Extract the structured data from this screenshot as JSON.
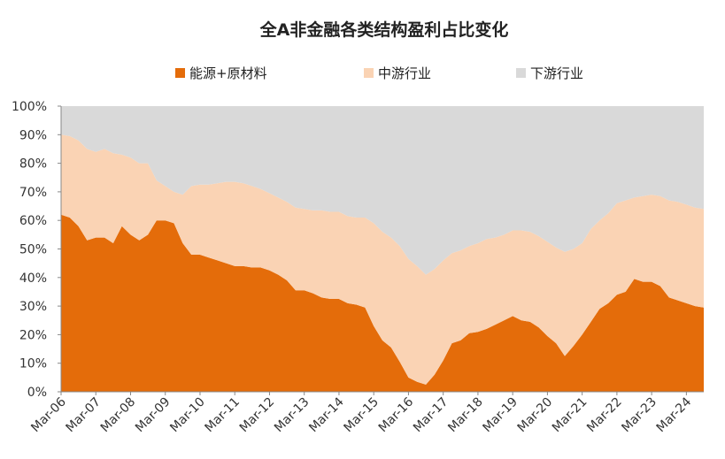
{
  "chart_data": {
    "type": "area",
    "stacked": true,
    "title": "全A非金融各类结构盈利占比变化",
    "legend_position": "top",
    "ylim": [
      0,
      100
    ],
    "yticks": [
      "0%",
      "10%",
      "20%",
      "30%",
      "40%",
      "50%",
      "60%",
      "70%",
      "80%",
      "90%",
      "100%"
    ],
    "xticks": [
      "Mar-06",
      "Mar-07",
      "Mar-08",
      "Mar-09",
      "Mar-10",
      "Mar-11",
      "Mar-12",
      "Mar-13",
      "Mar-14",
      "Mar-15",
      "Mar-16",
      "Mar-17",
      "Mar-18",
      "Mar-19",
      "Mar-20",
      "Mar-21",
      "Mar-22",
      "Mar-23",
      "Mar-24"
    ],
    "x": [
      2006.0,
      2006.25,
      2006.5,
      2006.75,
      2007.0,
      2007.25,
      2007.5,
      2007.75,
      2008.0,
      2008.25,
      2008.5,
      2008.75,
      2009.0,
      2009.25,
      2009.5,
      2009.75,
      2010.0,
      2010.25,
      2010.5,
      2010.75,
      2011.0,
      2011.25,
      2011.5,
      2011.75,
      2012.0,
      2012.25,
      2012.5,
      2012.75,
      2013.0,
      2013.25,
      2013.5,
      2013.75,
      2014.0,
      2014.25,
      2014.5,
      2014.75,
      2015.0,
      2015.25,
      2015.5,
      2015.75,
      2016.0,
      2016.25,
      2016.5,
      2016.75,
      2017.0,
      2017.25,
      2017.5,
      2017.75,
      2018.0,
      2018.25,
      2018.5,
      2018.75,
      2019.0,
      2019.25,
      2019.5,
      2019.75,
      2020.0,
      2020.25,
      2020.5,
      2020.75,
      2021.0,
      2021.25,
      2021.5,
      2021.75,
      2022.0,
      2022.25,
      2022.5,
      2022.75,
      2023.0,
      2023.25,
      2023.5,
      2023.75,
      2024.0,
      2024.25,
      2024.5
    ],
    "series": [
      {
        "name": "能源+原材料",
        "color": "#E46C0A",
        "values": [
          62,
          61,
          58,
          53,
          54,
          54,
          52,
          58,
          55,
          53,
          55,
          60,
          60,
          59,
          52,
          48,
          48,
          47,
          46,
          45,
          44,
          44,
          43.5,
          43.5,
          42.5,
          41,
          39,
          35.5,
          35.5,
          34.5,
          33,
          32.5,
          32.5,
          31,
          30.5,
          29.5,
          23,
          18,
          15.5,
          10.5,
          5,
          3.5,
          2.5,
          6,
          11,
          17,
          18,
          20.5,
          21,
          22,
          23.5,
          25,
          26.5,
          25,
          24.5,
          22.5,
          19.5,
          17,
          12.5,
          16,
          20,
          24.5,
          29,
          31,
          34,
          35,
          39.5,
          38.5,
          38.5,
          37,
          33,
          32,
          31,
          30,
          29.5
        ]
      },
      {
        "name": "中游行业",
        "color": "#FAD3B4",
        "values": [
          28,
          28.5,
          30,
          32,
          30,
          31,
          31.5,
          25,
          27,
          27,
          25,
          14,
          12,
          11,
          17,
          24,
          24.5,
          25.5,
          27,
          28.5,
          29.5,
          29,
          28.5,
          27.5,
          27,
          27,
          27.5,
          29,
          28.5,
          29,
          30.5,
          30.5,
          30.5,
          30.5,
          30.5,
          31.5,
          36,
          38,
          38.5,
          40.5,
          41.5,
          40.5,
          38.5,
          37,
          35,
          31.5,
          31.5,
          30.5,
          31,
          31.5,
          30.5,
          30,
          30,
          31.5,
          31.5,
          32,
          33,
          33.5,
          36.5,
          34,
          32,
          32.5,
          31,
          31.5,
          32,
          32,
          28.5,
          30,
          30.5,
          31.5,
          34,
          34.5,
          34.5,
          34.5,
          34.5
        ]
      },
      {
        "name": "下游行业",
        "color": "#D9D9D9",
        "values": [
          10,
          10.5,
          12,
          15,
          16,
          15,
          16.5,
          17,
          18,
          20,
          20,
          26,
          28,
          30,
          31,
          28,
          27.5,
          27.5,
          27,
          26.5,
          26.5,
          27,
          28,
          29,
          30.5,
          32,
          33.5,
          35.5,
          36,
          36.5,
          36.5,
          37,
          37,
          38.5,
          39,
          39,
          41,
          44,
          46,
          49,
          53.5,
          56,
          59,
          57,
          54,
          51.5,
          50.5,
          49,
          48,
          46.5,
          46,
          45,
          43.5,
          43.5,
          44,
          45.5,
          47.5,
          49.5,
          51,
          50,
          48,
          43,
          40,
          37.5,
          34,
          33,
          32,
          31.5,
          31,
          31.5,
          33,
          33.5,
          34.5,
          35.5,
          36
        ]
      }
    ]
  }
}
